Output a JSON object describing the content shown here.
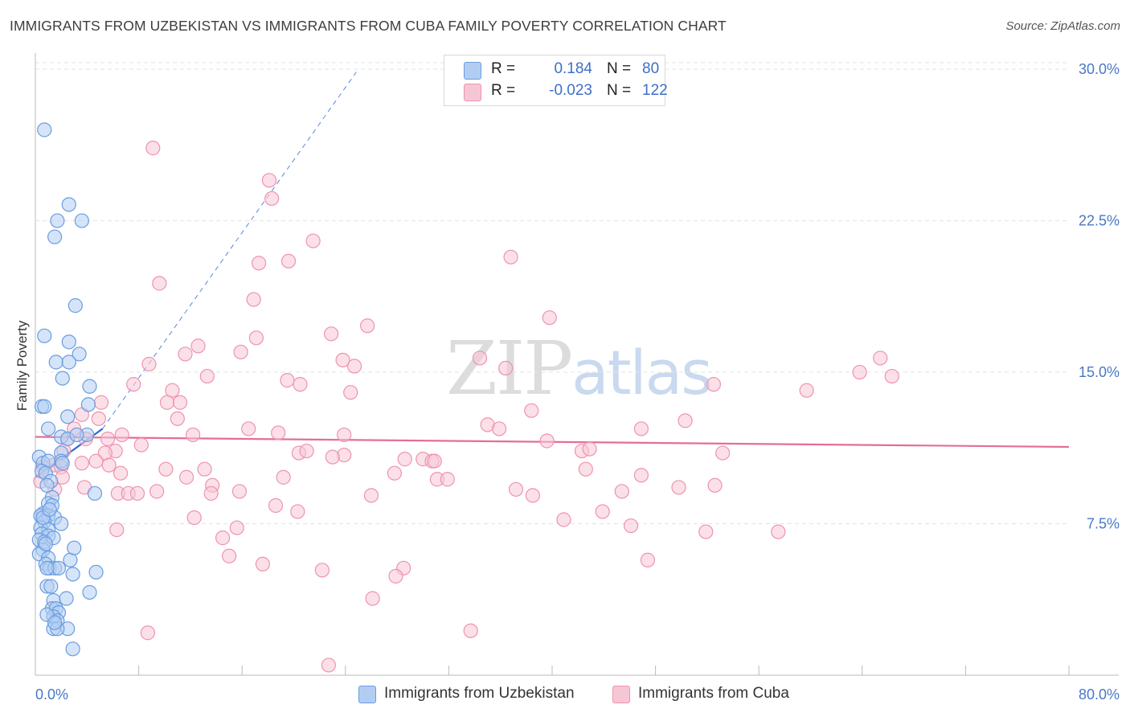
{
  "title": "IMMIGRANTS FROM UZBEKISTAN VS IMMIGRANTS FROM CUBA FAMILY POVERTY CORRELATION CHART",
  "source": "Source: ZipAtlas.com",
  "watermark": {
    "zip": "ZIP",
    "atlas": "atlas"
  },
  "colors": {
    "uzbekistan": "#6a9de0",
    "uzbekistan_fill": "#b3cdf2",
    "uzbekistan_line": "#2d6ad4",
    "cuba": "#ee93b0",
    "cuba_fill": "#f7c6d5",
    "cuba_line": "#e46e99",
    "grid": "#e3e3e3",
    "axis_label": "#4a78c7"
  },
  "legend": {
    "rows": [
      {
        "r_label": "R =",
        "r_value": "0.184",
        "n_label": "N =",
        "n_value": "80"
      },
      {
        "r_label": "R =",
        "r_value": "-0.023",
        "n_label": "N =",
        "n_value": "122"
      }
    ]
  },
  "bottom_legend": {
    "series1": "Immigrants from Uzbekistan",
    "series2": "Immigrants from Cuba"
  },
  "chart_data": {
    "type": "scatter",
    "title": "IMMIGRANTS FROM UZBEKISTAN VS IMMIGRANTS FROM CUBA FAMILY POVERTY CORRELATION CHART",
    "xlabel": "",
    "ylabel": "Family Poverty",
    "xlim": [
      0,
      80
    ],
    "ylim": [
      0,
      30.8
    ],
    "x_tick_labels": [
      {
        "value": 0,
        "label": "0.0%"
      },
      {
        "value": 80,
        "label": "80.0%"
      }
    ],
    "y_tick_labels": [
      {
        "value": 7.5,
        "label": "7.5%"
      },
      {
        "value": 15,
        "label": "15.0%"
      },
      {
        "value": 22.5,
        "label": "22.5%"
      },
      {
        "value": 30,
        "label": "30.0%"
      }
    ],
    "x_minor_ticks": [
      8,
      16,
      24,
      32,
      40,
      48,
      56,
      64,
      72,
      80
    ],
    "series": [
      {
        "name": "Immigrants from Uzbekistan",
        "trend": {
          "x0": 0,
          "y0": 9.8,
          "x1": 5.2,
          "y1": 12.2,
          "dash_to_x": 25,
          "dash_to_y": 30
        },
        "points": [
          [
            0.7,
            27.0
          ],
          [
            2.6,
            23.3
          ],
          [
            1.7,
            22.5
          ],
          [
            3.6,
            22.5
          ],
          [
            1.5,
            21.7
          ],
          [
            3.1,
            18.3
          ],
          [
            0.7,
            16.8
          ],
          [
            2.6,
            16.5
          ],
          [
            3.4,
            15.9
          ],
          [
            1.6,
            15.5
          ],
          [
            2.6,
            15.5
          ],
          [
            2.1,
            14.7
          ],
          [
            4.2,
            14.3
          ],
          [
            0.5,
            13.3
          ],
          [
            0.7,
            13.3
          ],
          [
            4.1,
            13.4
          ],
          [
            2.5,
            12.8
          ],
          [
            1.0,
            12.2
          ],
          [
            2.0,
            11.8
          ],
          [
            4.0,
            11.9
          ],
          [
            2.5,
            11.7
          ],
          [
            3.2,
            11.9
          ],
          [
            2.0,
            11.0
          ],
          [
            0.3,
            10.8
          ],
          [
            2.0,
            10.6
          ],
          [
            0.6,
            10.5
          ],
          [
            1.0,
            10.6
          ],
          [
            2.1,
            10.5
          ],
          [
            0.5,
            10.1
          ],
          [
            0.8,
            10.0
          ],
          [
            1.2,
            9.6
          ],
          [
            4.6,
            9.0
          ],
          [
            1.3,
            8.8
          ],
          [
            1.0,
            8.5
          ],
          [
            1.3,
            8.4
          ],
          [
            0.6,
            8.0
          ],
          [
            0.4,
            7.9
          ],
          [
            1.0,
            7.9
          ],
          [
            1.5,
            7.8
          ],
          [
            0.7,
            7.6
          ],
          [
            2.0,
            7.5
          ],
          [
            0.4,
            7.3
          ],
          [
            1.0,
            7.2
          ],
          [
            0.5,
            7.0
          ],
          [
            1.0,
            6.9
          ],
          [
            0.3,
            6.7
          ],
          [
            0.7,
            6.6
          ],
          [
            1.4,
            6.8
          ],
          [
            0.6,
            6.2
          ],
          [
            0.3,
            6.0
          ],
          [
            1.0,
            5.8
          ],
          [
            2.7,
            5.7
          ],
          [
            0.8,
            5.5
          ],
          [
            1.1,
            5.3
          ],
          [
            1.5,
            5.3
          ],
          [
            1.8,
            5.3
          ],
          [
            0.9,
            5.3
          ],
          [
            2.9,
            5.0
          ],
          [
            4.7,
            5.1
          ],
          [
            0.9,
            4.4
          ],
          [
            1.2,
            4.4
          ],
          [
            4.2,
            4.1
          ],
          [
            1.4,
            3.7
          ],
          [
            2.4,
            3.8
          ],
          [
            1.3,
            3.3
          ],
          [
            1.6,
            3.3
          ],
          [
            1.8,
            3.1
          ],
          [
            1.4,
            2.9
          ],
          [
            1.7,
            2.7
          ],
          [
            1.4,
            2.3
          ],
          [
            2.5,
            2.3
          ],
          [
            1.7,
            2.3
          ],
          [
            2.9,
            1.3
          ],
          [
            0.9,
            3.0
          ],
          [
            1.5,
            2.6
          ],
          [
            0.8,
            6.5
          ],
          [
            0.6,
            7.8
          ],
          [
            1.1,
            8.2
          ],
          [
            3.0,
            6.3
          ],
          [
            0.9,
            9.4
          ]
        ]
      },
      {
        "name": "Immigrants from Cuba",
        "trend": {
          "x0": 0,
          "y0": 11.8,
          "x1": 80,
          "y1": 11.3
        },
        "points": [
          [
            9.1,
            26.1
          ],
          [
            18.1,
            24.5
          ],
          [
            18.3,
            23.6
          ],
          [
            21.5,
            21.5
          ],
          [
            36.8,
            20.7
          ],
          [
            17.3,
            20.4
          ],
          [
            19.6,
            20.5
          ],
          [
            9.6,
            19.4
          ],
          [
            16.9,
            18.6
          ],
          [
            39.8,
            17.7
          ],
          [
            25.7,
            17.3
          ],
          [
            22.9,
            16.9
          ],
          [
            17.1,
            16.7
          ],
          [
            12.6,
            16.3
          ],
          [
            15.9,
            16.0
          ],
          [
            11.6,
            15.9
          ],
          [
            23.8,
            15.6
          ],
          [
            24.7,
            15.3
          ],
          [
            34.4,
            15.7
          ],
          [
            8.8,
            15.4
          ],
          [
            65.4,
            15.7
          ],
          [
            36.4,
            15.2
          ],
          [
            63.8,
            15.0
          ],
          [
            66.3,
            14.8
          ],
          [
            13.3,
            14.8
          ],
          [
            19.5,
            14.6
          ],
          [
            20.5,
            14.4
          ],
          [
            7.6,
            14.4
          ],
          [
            52.5,
            14.4
          ],
          [
            10.6,
            14.1
          ],
          [
            24.4,
            14.0
          ],
          [
            59.7,
            14.1
          ],
          [
            5.1,
            13.5
          ],
          [
            10.2,
            13.5
          ],
          [
            11.2,
            13.5
          ],
          [
            38.4,
            13.1
          ],
          [
            3.6,
            12.9
          ],
          [
            4.9,
            12.7
          ],
          [
            11.0,
            12.7
          ],
          [
            50.3,
            12.6
          ],
          [
            35.0,
            12.4
          ],
          [
            35.9,
            12.2
          ],
          [
            16.5,
            12.2
          ],
          [
            46.9,
            12.2
          ],
          [
            3.0,
            12.2
          ],
          [
            12.2,
            11.9
          ],
          [
            18.8,
            12.0
          ],
          [
            23.9,
            11.9
          ],
          [
            2.5,
            11.7
          ],
          [
            3.9,
            11.7
          ],
          [
            6.7,
            11.9
          ],
          [
            5.6,
            11.7
          ],
          [
            39.6,
            11.6
          ],
          [
            8.2,
            11.4
          ],
          [
            6.2,
            11.1
          ],
          [
            5.4,
            11.0
          ],
          [
            20.4,
            11.0
          ],
          [
            21.0,
            11.1
          ],
          [
            42.3,
            11.1
          ],
          [
            2.2,
            11.1
          ],
          [
            53.2,
            11.0
          ],
          [
            42.9,
            11.2
          ],
          [
            23.9,
            10.9
          ],
          [
            23.0,
            10.8
          ],
          [
            28.6,
            10.7
          ],
          [
            30.0,
            10.7
          ],
          [
            30.7,
            10.6
          ],
          [
            30.9,
            10.6
          ],
          [
            3.6,
            10.5
          ],
          [
            4.7,
            10.6
          ],
          [
            1.4,
            10.4
          ],
          [
            2.0,
            10.3
          ],
          [
            0.6,
            10.3
          ],
          [
            5.7,
            10.4
          ],
          [
            10.1,
            10.2
          ],
          [
            13.1,
            10.2
          ],
          [
            27.8,
            10.0
          ],
          [
            42.6,
            10.2
          ],
          [
            6.6,
            10.0
          ],
          [
            11.7,
            9.8
          ],
          [
            19.2,
            9.8
          ],
          [
            31.1,
            9.7
          ],
          [
            31.9,
            9.7
          ],
          [
            46.9,
            9.9
          ],
          [
            13.7,
            9.4
          ],
          [
            52.6,
            9.4
          ],
          [
            15.8,
            9.1
          ],
          [
            37.2,
            9.2
          ],
          [
            45.4,
            9.1
          ],
          [
            49.8,
            9.3
          ],
          [
            6.4,
            9.0
          ],
          [
            7.2,
            9.0
          ],
          [
            7.9,
            9.0
          ],
          [
            9.4,
            9.1
          ],
          [
            13.6,
            9.0
          ],
          [
            26.0,
            8.9
          ],
          [
            38.5,
            8.9
          ],
          [
            1.5,
            9.2
          ],
          [
            3.8,
            9.3
          ],
          [
            2.1,
            9.8
          ],
          [
            18.6,
            8.4
          ],
          [
            20.3,
            8.1
          ],
          [
            43.9,
            8.1
          ],
          [
            12.3,
            7.8
          ],
          [
            40.9,
            7.7
          ],
          [
            46.1,
            7.4
          ],
          [
            15.6,
            7.3
          ],
          [
            6.3,
            7.2
          ],
          [
            51.9,
            7.1
          ],
          [
            57.5,
            7.1
          ],
          [
            14.5,
            6.8
          ],
          [
            15.0,
            5.9
          ],
          [
            17.6,
            5.5
          ],
          [
            47.4,
            5.7
          ],
          [
            22.2,
            5.2
          ],
          [
            28.5,
            5.3
          ],
          [
            27.9,
            4.9
          ],
          [
            26.1,
            3.8
          ],
          [
            33.7,
            2.2
          ],
          [
            8.7,
            2.1
          ],
          [
            22.7,
            0.5
          ],
          [
            0.4,
            9.6
          ]
        ]
      }
    ]
  }
}
